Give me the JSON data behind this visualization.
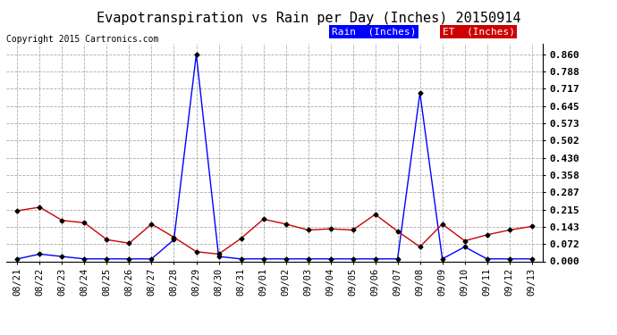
{
  "title": "Evapotranspiration vs Rain per Day (Inches) 20150914",
  "copyright": "Copyright 2015 Cartronics.com",
  "background_color": "#ffffff",
  "plot_bg_color": "#ffffff",
  "grid_color": "#aaaaaa",
  "x_labels": [
    "08/21",
    "08/22",
    "08/23",
    "08/24",
    "08/25",
    "08/26",
    "08/27",
    "08/28",
    "08/29",
    "08/30",
    "08/31",
    "09/01",
    "09/02",
    "09/03",
    "09/04",
    "09/05",
    "09/06",
    "09/07",
    "09/08",
    "09/09",
    "09/10",
    "09/11",
    "09/12",
    "09/13"
  ],
  "rain_values": [
    0.01,
    0.03,
    0.02,
    0.01,
    0.01,
    0.01,
    0.01,
    0.09,
    0.86,
    0.02,
    0.01,
    0.01,
    0.01,
    0.01,
    0.01,
    0.01,
    0.01,
    0.01,
    0.7,
    0.01,
    0.06,
    0.01,
    0.01,
    0.01
  ],
  "et_values": [
    0.21,
    0.225,
    0.17,
    0.16,
    0.09,
    0.075,
    0.155,
    0.1,
    0.04,
    0.03,
    0.095,
    0.175,
    0.155,
    0.13,
    0.135,
    0.13,
    0.195,
    0.125,
    0.06,
    0.155,
    0.085,
    0.11,
    0.13,
    0.145
  ],
  "rain_color": "#0000ff",
  "et_color": "#cc0000",
  "marker_color": "#000000",
  "y_ticks": [
    0.0,
    0.072,
    0.143,
    0.215,
    0.287,
    0.358,
    0.43,
    0.502,
    0.573,
    0.645,
    0.717,
    0.788,
    0.86
  ],
  "ylim": [
    0.0,
    0.905
  ],
  "title_fontsize": 11,
  "copyright_fontsize": 7,
  "legend_rain_label": "Rain  (Inches)",
  "legend_et_label": "ET  (Inches)",
  "legend_fontsize": 8,
  "tick_fontsize": 7.5,
  "ytick_fontsize": 8
}
